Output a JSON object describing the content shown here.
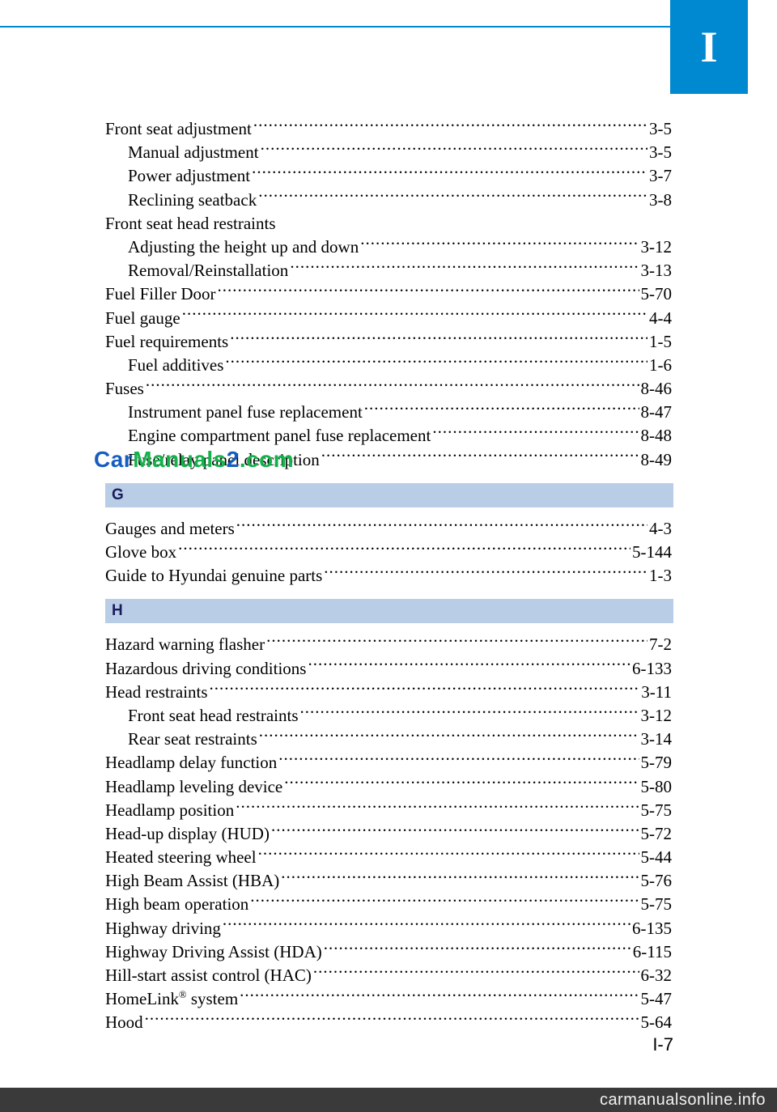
{
  "header": {
    "tab": "I"
  },
  "sections": {
    "firstItems": [
      {
        "label": "Front seat adjustment",
        "page": "3-5",
        "indent": false
      },
      {
        "label": "Manual adjustment",
        "page": "3-5",
        "indent": true
      },
      {
        "label": "Power adjustment",
        "page": "3-7",
        "indent": true
      },
      {
        "label": "Reclining seatback",
        "page": "3-8",
        "indent": true
      },
      {
        "label": "Front seat head restraints",
        "page": "",
        "indent": false
      },
      {
        "label": "Adjusting the height up and down",
        "page": "3-12",
        "indent": true
      },
      {
        "label": "Removal/Reinstallation",
        "page": "3-13",
        "indent": true
      },
      {
        "label": "Fuel Filler Door",
        "page": "5-70",
        "indent": false
      },
      {
        "label": "Fuel gauge",
        "page": "4-4",
        "indent": false
      },
      {
        "label": "Fuel requirements",
        "page": "1-5",
        "indent": false
      },
      {
        "label": "Fuel additives",
        "page": "1-6",
        "indent": true
      },
      {
        "label": "Fuses",
        "page": "8-46",
        "indent": false
      },
      {
        "label": "Instrument panel fuse replacement",
        "page": "8-47",
        "indent": true
      },
      {
        "label": "Engine compartment panel fuse replacement",
        "page": "8-48",
        "indent": true
      },
      {
        "label": "Fuse/relay panel description",
        "page": "8-49",
        "indent": true
      }
    ],
    "gHeader": "G",
    "gItems": [
      {
        "label": "Gauges and meters",
        "page": "4-3",
        "indent": false
      },
      {
        "label": "Glove box",
        "page": "5-144",
        "indent": false
      },
      {
        "label": "Guide to Hyundai genuine parts",
        "page": "1-3",
        "indent": false
      }
    ],
    "hHeader": "H",
    "hItems": [
      {
        "label": "Hazard warning flasher",
        "page": "7-2",
        "indent": false
      },
      {
        "label": "Hazardous driving conditions",
        "page": "6-133",
        "indent": false
      },
      {
        "label": "Head restraints",
        "page": "3-11",
        "indent": false
      },
      {
        "label": "Front seat head restraints",
        "page": "3-12",
        "indent": true
      },
      {
        "label": "Rear seat restraints",
        "page": "3-14",
        "indent": true
      },
      {
        "label": "Headlamp delay function",
        "page": "5-79",
        "indent": false
      },
      {
        "label": "Headlamp leveling device",
        "page": "5-80",
        "indent": false
      },
      {
        "label": "Headlamp position",
        "page": "5-75",
        "indent": false
      },
      {
        "label": "Head-up display (HUD)",
        "page": "5-72",
        "indent": false
      },
      {
        "label": "Heated steering wheel",
        "page": "5-44",
        "indent": false
      },
      {
        "label": "High Beam Assist (HBA) ",
        "page": "5-76",
        "indent": false
      },
      {
        "label": "High beam operation",
        "page": "5-75",
        "indent": false
      },
      {
        "label": "Highway driving",
        "page": "6-135",
        "indent": false
      },
      {
        "label": "Highway Driving Assist (HDA)",
        "page": "6-115",
        "indent": false
      },
      {
        "label": "Hill-start assist control (HAC)",
        "page": "6-32",
        "indent": false
      },
      {
        "label": "HomeLink® system",
        "page": "5-47",
        "indent": false,
        "hasReg": true,
        "labelPrefix": "HomeLink",
        "labelSuffix": " system"
      },
      {
        "label": "Hood",
        "page": "5-64",
        "indent": false
      }
    ]
  },
  "watermark": {
    "part1": "Car",
    "part2": "Manuals",
    "part3": "2",
    "part4": ".com"
  },
  "pageNumber": "I-7",
  "footer": "carmanualsonline.info",
  "colors": {
    "accent": "#0089d0",
    "sectionBg": "#b9cde7",
    "sectionText": "#191c5c",
    "footerBg": "#3a3a3a"
  }
}
